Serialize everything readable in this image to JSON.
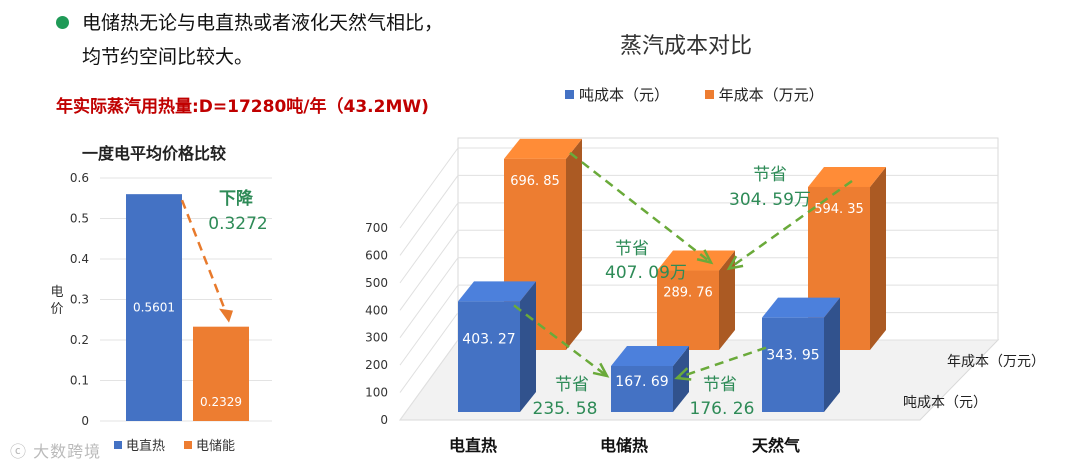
{
  "bullet": {
    "line1": "电储热无论与电直热或者液化天然气相比，",
    "line2": "均节约空间比较大。"
  },
  "highlight": "年实际蒸汽用热量:D=17280吨/年（43.2MW)",
  "colors": {
    "blue": "#4472c4",
    "orange": "#ed7d31",
    "green": "#2e8b57",
    "red": "#c00000",
    "dash_green": "#6aaa3a",
    "dash_orange": "#e87a2c"
  },
  "watermark": "大数跨境",
  "chart_data": [
    {
      "type": "bar",
      "title": "一度电平均价格比较",
      "ylabel": "电价",
      "ylim": [
        0,
        0.6
      ],
      "yticks": [
        "0",
        "0.1",
        "0.2",
        "0.3",
        "0.4",
        "0.5",
        "0.6"
      ],
      "categories": [
        "电直热",
        "电储能"
      ],
      "values": [
        0.5601,
        0.2329
      ],
      "value_labels": [
        "0.5601",
        "0.2329"
      ],
      "legend": [
        "电直热",
        "电储能"
      ],
      "annotation": {
        "line1": "下降",
        "line2": "0.3272"
      },
      "grid": true
    },
    {
      "type": "bar",
      "title": "蒸汽成本对比",
      "ylim": [
        0,
        700
      ],
      "yticks": [
        "0",
        "100",
        "200",
        "300",
        "400",
        "500",
        "600",
        "700"
      ],
      "categories": [
        "电直热",
        "电储热",
        "天然气"
      ],
      "series": [
        {
          "name": "吨成本（元）",
          "values": [
            403.27,
            167.69,
            343.95
          ]
        },
        {
          "name": "年成本（万元）",
          "values": [
            696.85,
            289.76,
            594.35
          ]
        }
      ],
      "value_labels": {
        "ton": [
          "403. 27",
          "167. 69",
          "343. 95"
        ],
        "year": [
          "696. 85",
          "289. 76",
          "594. 35"
        ]
      },
      "depth_labels": [
        "年成本（万元）",
        "吨成本（元）"
      ],
      "annotations": [
        {
          "line1": "节省",
          "line2": "407. 09万"
        },
        {
          "line1": "节省",
          "line2": "304. 59万"
        },
        {
          "line1": "节省",
          "line2": "235. 58"
        },
        {
          "line1": "节省",
          "line2": "176. 26"
        }
      ],
      "grid": true
    }
  ]
}
